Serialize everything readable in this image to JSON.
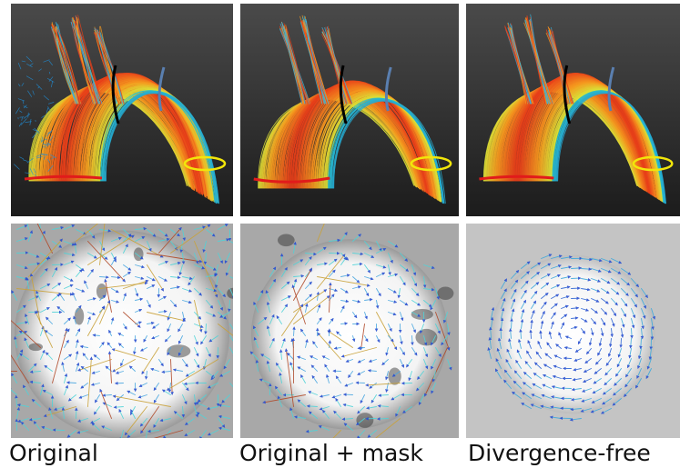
{
  "figure": {
    "panels_top": [
      {
        "name": "aorta-streamlines-original",
        "style": "noisy"
      },
      {
        "name": "aorta-streamlines-original-mask",
        "style": "masked"
      },
      {
        "name": "aorta-streamlines-divergence-free",
        "style": "smooth"
      }
    ],
    "panels_bottom": [
      {
        "name": "vector-field-original",
        "style": "noisy"
      },
      {
        "name": "vector-field-original-mask",
        "style": "masked"
      },
      {
        "name": "vector-field-divergence-free",
        "style": "smooth"
      }
    ],
    "captions": [
      "Original",
      "Original + mask",
      "Divergence-free"
    ],
    "colors": {
      "background_dark": "#3a3a3a",
      "flow_hot": "#e8401a",
      "flow_warm": "#f59a1f",
      "flow_cool": "#1f8fd8",
      "plane_black": "#000000",
      "plane_blue": "#5a7fb0",
      "plane_yellow": "#f2e60a",
      "inlet_red": "#e11b1b",
      "vector_blue": "#2a4fd0"
    }
  }
}
